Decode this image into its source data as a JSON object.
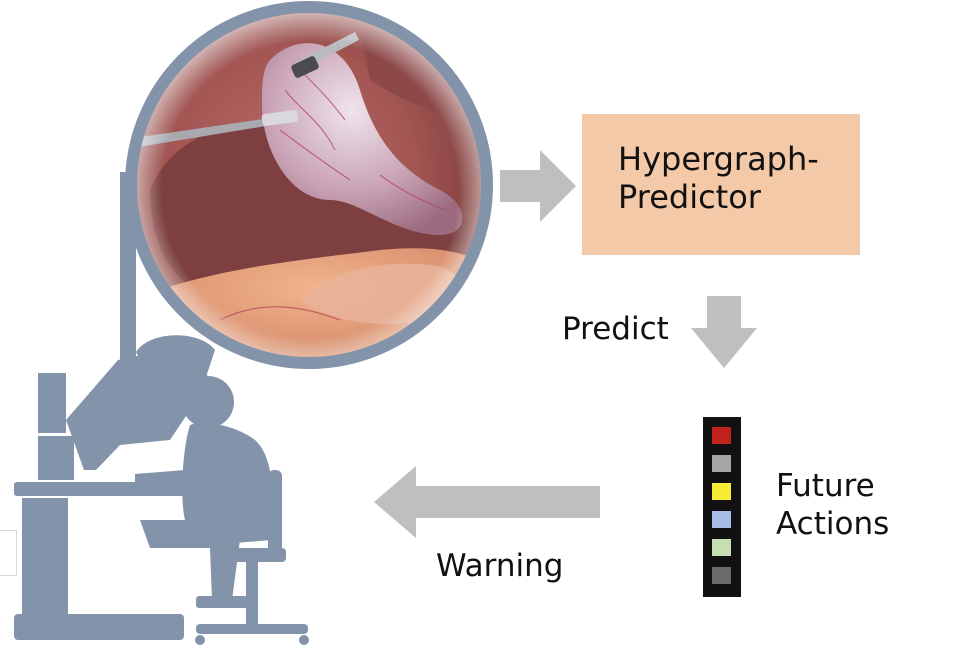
{
  "predictor": {
    "label": "Hypergraph-\nPredictor",
    "color": "#f4c9a7"
  },
  "arrows": {
    "color": "#bfbfbf"
  },
  "labels": {
    "predict": "Predict",
    "warning": "Warning",
    "future_actions": "Future\nActions"
  },
  "action_colors": [
    "#c0221c",
    "#a6a6a6",
    "#f6ed34",
    "#a7bde6",
    "#c6dfb2",
    "#6b6b6b"
  ],
  "figure_color": "#8394aa",
  "icons": {
    "surgical_view": "endoscopic-surgery-image",
    "surgeon": "surgeon-at-console-icon"
  }
}
